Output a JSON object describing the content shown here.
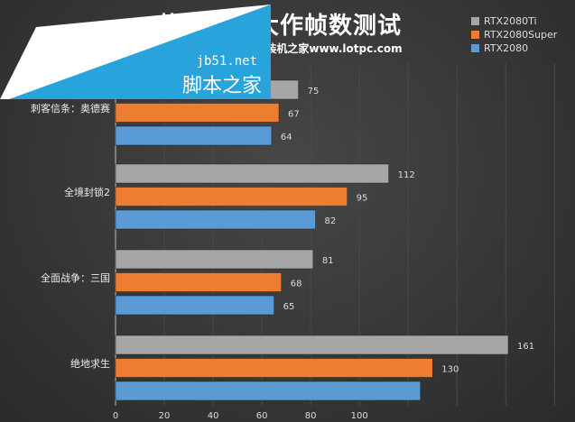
{
  "chart_data": {
    "type": "bar",
    "orientation": "horizontal",
    "title": "热门游戏大作帧数测试",
    "subtitle": "画质：2K 最高画质 装机之家www.lotpc.com",
    "categories": [
      "刺客信条：奥德赛",
      "全境封锁2",
      "全面战争：三国",
      "绝地求生"
    ],
    "series": [
      {
        "name": "RTX2080Ti",
        "color": "#a6a6a6",
        "values": [
          75,
          112,
          81,
          161
        ]
      },
      {
        "name": "RTX2080Super",
        "color": "#ed7d31",
        "values": [
          67,
          95,
          68,
          130
        ]
      },
      {
        "name": "RTX2080",
        "color": "#5b9bd5",
        "values": [
          64,
          82,
          65,
          125
        ]
      }
    ],
    "hidden_labels": [
      [
        3,
        2
      ]
    ],
    "xticks": [
      0,
      20,
      40,
      60,
      80,
      100
    ],
    "xlim": [
      0,
      180
    ],
    "grid": true,
    "legend": "top-right"
  },
  "watermark": {
    "site": "jb51.net",
    "name": "脚本之家"
  }
}
